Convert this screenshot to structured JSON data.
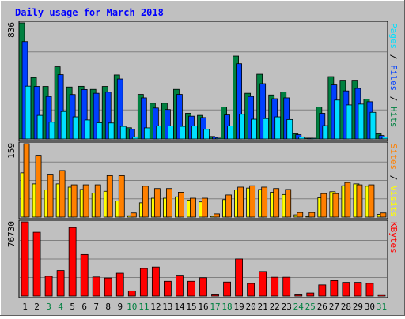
{
  "colors": {
    "frame_bg": "#c0c0c0",
    "panel_bg": "#c0c0c0",
    "title": "#0000ff",
    "hits": "#008040",
    "files": "#0040ff",
    "pages": "#00e0ff",
    "visits": "#ffff00",
    "sites": "#ff8000",
    "kbytes": "#ff0000",
    "weekend_day": "#008040",
    "weekday": "#000000"
  },
  "chart_data": {
    "type": "bar",
    "title": "Daily usage for March 2018",
    "categories": [
      "1",
      "2",
      "3",
      "4",
      "5",
      "6",
      "7",
      "8",
      "9",
      "10",
      "11",
      "12",
      "13",
      "14",
      "15",
      "16",
      "17",
      "18",
      "19",
      "20",
      "21",
      "22",
      "23",
      "24",
      "25",
      "26",
      "27",
      "28",
      "29",
      "30",
      "31"
    ],
    "weekend_days": [
      "3",
      "4",
      "10",
      "11",
      "17",
      "18",
      "24",
      "25",
      "31"
    ],
    "panels": [
      {
        "id": "traffic",
        "max_label": "836",
        "ylim": [
          0,
          836
        ],
        "side_label": [
          {
            "text": "Pages",
            "color_key": "pages"
          },
          {
            "text": " / ",
            "color_key": "dark"
          },
          {
            "text": "Files",
            "color_key": "files"
          },
          {
            "text": " / ",
            "color_key": "dark"
          },
          {
            "text": "Hits",
            "color_key": "hits"
          }
        ],
        "series": [
          {
            "name": "Hits",
            "color_key": "hits",
            "values": [
              836,
              442,
              378,
              520,
              374,
              379,
              357,
              378,
              461,
              81,
              321,
              257,
              257,
              357,
              185,
              170,
              18,
              230,
              597,
              329,
              466,
              317,
              338,
              37,
              6,
              230,
              449,
              423,
              423,
              287,
              37
            ]
          },
          {
            "name": "Files",
            "color_key": "files",
            "values": [
              701,
              378,
              306,
              463,
              320,
              356,
              329,
              337,
              432,
              70,
              296,
              223,
              212,
              321,
              164,
              154,
              13,
              173,
              542,
              306,
              398,
              290,
              296,
              31,
              4,
              185,
              389,
              346,
              364,
              268,
              25
            ]
          },
          {
            "name": "Pages",
            "color_key": "pages",
            "values": [
              380,
              170,
              121,
              198,
              159,
              137,
              117,
              115,
              91,
              15,
              80,
              94,
              94,
              91,
              94,
              70,
              6,
              94,
              178,
              142,
              147,
              159,
              140,
              15,
              2,
              96,
              280,
              245,
              251,
              192,
              14
            ]
          }
        ]
      },
      {
        "id": "visitors",
        "max_label": "159",
        "ylim": [
          0,
          159
        ],
        "side_label": [
          {
            "text": "Sites",
            "color_key": "sites"
          },
          {
            "text": " / ",
            "color_key": "dark"
          },
          {
            "text": "Visits",
            "color_key": "visits"
          }
        ],
        "series": [
          {
            "name": "Visits",
            "color_key": "visits",
            "values": [
              96,
              72,
              59,
              72,
              65,
              60,
              52,
              56,
              35,
              3,
              31,
              41,
              41,
              44,
              37,
              33,
              2,
              38,
              59,
              63,
              60,
              54,
              49,
              5,
              1,
              42,
              55,
              68,
              72,
              67,
              6
            ]
          },
          {
            "name": "Sites",
            "color_key": "sites",
            "values": [
              159,
              134,
              93,
              101,
              70,
              70,
              70,
              90,
              90,
              9,
              67,
              62,
              62,
              54,
              41,
              41,
              7,
              48,
              65,
              68,
              65,
              62,
              60,
              10,
              10,
              51,
              51,
              75,
              70,
              70,
              9
            ]
          }
        ]
      },
      {
        "id": "kbytes",
        "max_label": "76730",
        "ylim": [
          0,
          76730
        ],
        "side_label": [
          {
            "text": "KBytes",
            "color_key": "kbytes"
          }
        ],
        "series": [
          {
            "name": "KBytes",
            "color_key": "kbytes",
            "values": [
              76730,
              66050,
              20500,
              26470,
              70870,
              42960,
              19740,
              18680,
              23640,
              5410,
              28580,
              30060,
              15280,
              21570,
              15280,
              18970,
              2070,
              14500,
              38420,
              13040,
              25420,
              19470,
              19470,
              2070,
              3210,
              11540,
              16010,
              14180,
              14180,
              13150,
              1460
            ]
          }
        ]
      }
    ]
  }
}
